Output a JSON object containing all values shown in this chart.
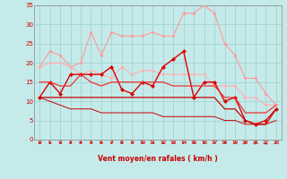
{
  "x": [
    0,
    1,
    2,
    3,
    4,
    5,
    6,
    7,
    8,
    9,
    10,
    11,
    12,
    13,
    14,
    15,
    16,
    17,
    18,
    19,
    20,
    21,
    22,
    23
  ],
  "xlabel": "Vent moyen/en rafales ( km/h )",
  "xlim": [
    -0.5,
    23.5
  ],
  "ylim": [
    0,
    35
  ],
  "yticks": [
    0,
    5,
    10,
    15,
    20,
    25,
    30,
    35
  ],
  "xticks": [
    0,
    1,
    2,
    3,
    4,
    5,
    6,
    7,
    8,
    9,
    10,
    11,
    12,
    13,
    14,
    15,
    16,
    17,
    18,
    19,
    20,
    21,
    22,
    23
  ],
  "bg_color": "#c5eaea",
  "grid_color": "#9ecece",
  "tick_color": "#cc0000",
  "label_color": "#cc0000",
  "series": [
    {
      "values": [
        19,
        23,
        22,
        19,
        20,
        28,
        22,
        28,
        27,
        27,
        27,
        28,
        27,
        27,
        33,
        33,
        35,
        33,
        25,
        22,
        16,
        16,
        12,
        9
      ],
      "color": "#ff9999",
      "marker": "D",
      "markersize": 2.0,
      "linewidth": 0.8
    },
    {
      "values": [
        19,
        20,
        20,
        19,
        17,
        18,
        17,
        16,
        19,
        17,
        18,
        18,
        17,
        17,
        17,
        17,
        17,
        14,
        14,
        14,
        11,
        11,
        9,
        9
      ],
      "color": "#ffb0b0",
      "marker": "D",
      "markersize": 2.0,
      "linewidth": 0.8
    },
    {
      "values": [
        11,
        15,
        12,
        17,
        17,
        17,
        17,
        19,
        13,
        12,
        15,
        14,
        19,
        21,
        23,
        11,
        15,
        15,
        10,
        11,
        5,
        4,
        5,
        8
      ],
      "color": "#dd0000",
      "marker": "D",
      "markersize": 2.5,
      "linewidth": 1.0
    },
    {
      "values": [
        15,
        15,
        14,
        14,
        17,
        15,
        14,
        15,
        15,
        15,
        15,
        15,
        15,
        14,
        14,
        14,
        14,
        14,
        11,
        11,
        7,
        7,
        7,
        9
      ],
      "color": "#ee3333",
      "marker": null,
      "markersize": 0,
      "linewidth": 0.9
    },
    {
      "values": [
        11,
        11,
        11,
        11,
        11,
        11,
        11,
        11,
        11,
        11,
        11,
        11,
        11,
        11,
        11,
        11,
        11,
        11,
        8,
        8,
        5,
        4,
        4,
        8
      ],
      "color": "#cc0000",
      "marker": null,
      "markersize": 0,
      "linewidth": 0.9
    },
    {
      "values": [
        11,
        10,
        9,
        8,
        8,
        8,
        7,
        7,
        7,
        7,
        7,
        7,
        6,
        6,
        6,
        6,
        6,
        6,
        5,
        5,
        4,
        4,
        4,
        5
      ],
      "color": "#cc0000",
      "marker": null,
      "markersize": 0,
      "linewidth": 0.7
    }
  ],
  "wind_arrow_angles": [
    90,
    90,
    90,
    95,
    100,
    90,
    90,
    90,
    90,
    90,
    90,
    90,
    100,
    90,
    90,
    90,
    100,
    90,
    100,
    110,
    120,
    130,
    175,
    260
  ],
  "arrow_color": "#cc0000"
}
